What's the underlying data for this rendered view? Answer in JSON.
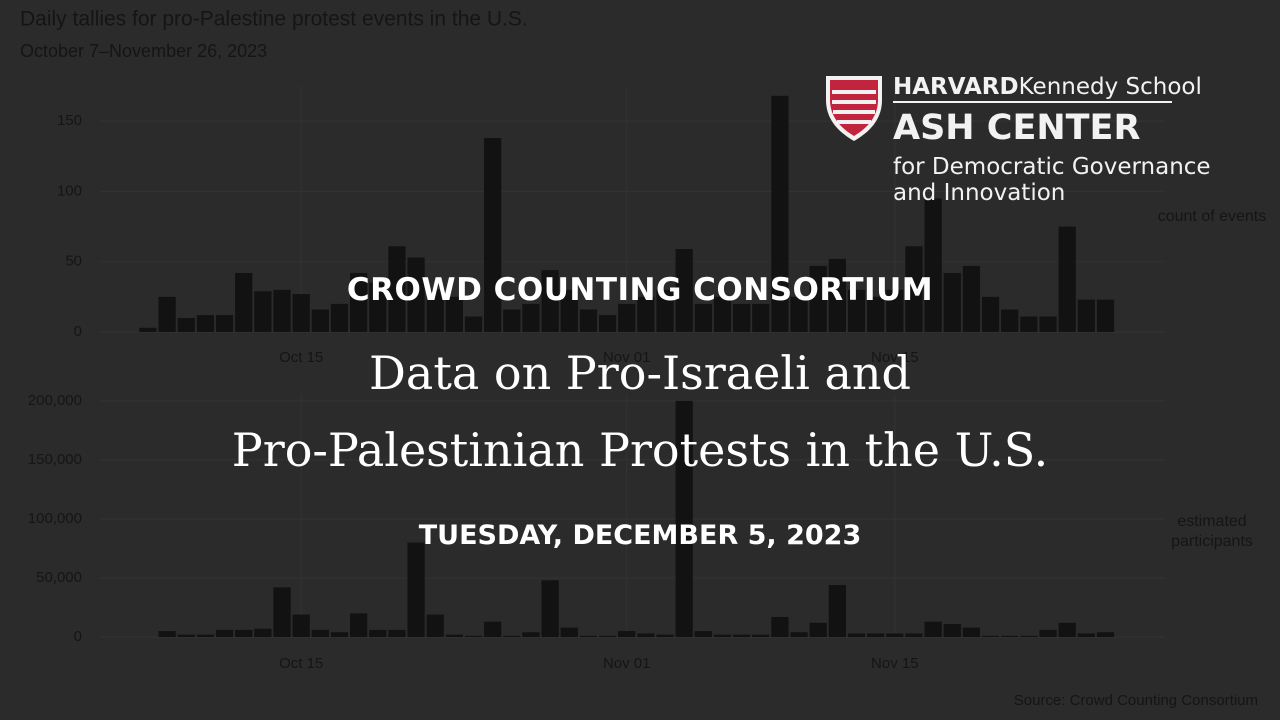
{
  "chart_data": [
    {
      "type": "bar",
      "title": "Daily tallies for pro-Palestine protest events in the U.S.",
      "subtitle": "October 7–November 26, 2023",
      "y_label": "count of events",
      "color": "#121212",
      "grid": true,
      "categories": [
        null,
        null,
        null,
        null,
        null,
        null,
        null,
        null,
        "Oct 15",
        null,
        null,
        null,
        null,
        null,
        null,
        null,
        null,
        null,
        null,
        null,
        null,
        null,
        null,
        null,
        null,
        "Nov 01",
        null,
        null,
        null,
        null,
        null,
        null,
        null,
        null,
        null,
        null,
        null,
        null,
        null,
        "Nov 15",
        null,
        null,
        null,
        null,
        null,
        null,
        null,
        null,
        null,
        null,
        null
      ],
      "values": [
        3,
        25,
        10,
        12,
        12,
        42,
        29,
        30,
        27,
        16,
        20,
        42,
        35,
        61,
        53,
        30,
        25,
        11,
        138,
        16,
        20,
        44,
        30,
        16,
        12,
        20,
        25,
        30,
        59,
        20,
        25,
        20,
        20,
        168,
        25,
        47,
        52,
        30,
        25,
        30,
        61,
        95,
        42,
        47,
        25,
        16,
        11,
        11,
        75,
        23,
        23
      ],
      "ylim": [
        0,
        175
      ],
      "yticks": [
        0,
        50,
        100,
        150
      ]
    },
    {
      "type": "bar",
      "y_label": "estimated participants",
      "color": "#121212",
      "grid": true,
      "caption": "Source: Crowd Counting Consortium",
      "categories": [
        null,
        null,
        null,
        null,
        null,
        null,
        null,
        null,
        "Oct 15",
        null,
        null,
        null,
        null,
        null,
        null,
        null,
        null,
        null,
        null,
        null,
        null,
        null,
        null,
        null,
        null,
        "Nov 01",
        null,
        null,
        null,
        null,
        null,
        null,
        null,
        null,
        null,
        null,
        null,
        null,
        null,
        "Nov 15",
        null,
        null,
        null,
        null,
        null,
        null,
        null,
        null,
        null,
        null,
        null
      ],
      "values": [
        0,
        5000,
        2000,
        2000,
        6000,
        6000,
        7000,
        42000,
        19000,
        6000,
        4000,
        20000,
        6000,
        6000,
        80000,
        19000,
        2000,
        1000,
        13000,
        1000,
        4000,
        48000,
        8000,
        1000,
        1000,
        5000,
        3000,
        2000,
        200000,
        5000,
        2000,
        2000,
        2000,
        17000,
        4000,
        12000,
        44000,
        3000,
        3000,
        3000,
        3000,
        13000,
        11000,
        8000,
        1000,
        1000,
        1000,
        6000,
        12000,
        3000,
        4000
      ],
      "ylim": [
        0,
        205000
      ],
      "yticks": [
        0,
        {
          "value": 50000,
          "label": "50,000"
        },
        {
          "value": 100000,
          "label": "100,000"
        },
        {
          "value": 150000,
          "label": "150,000"
        },
        {
          "value": 200000,
          "label": "200,000"
        }
      ]
    }
  ],
  "overlay": {
    "organizer": "CROWD COUNTING CONSORTIUM",
    "title_lines": [
      "Data on Pro-Israeli and",
      "Pro-Palestinian Protests in the U.S."
    ],
    "date": "TUESDAY, DECEMBER 5, 2023"
  },
  "logo": {
    "harvard": "HARVARD",
    "school": "Kennedy School",
    "center": "ASH CENTER",
    "lines": [
      "for Democratic Governance",
      "and Innovation"
    ]
  }
}
